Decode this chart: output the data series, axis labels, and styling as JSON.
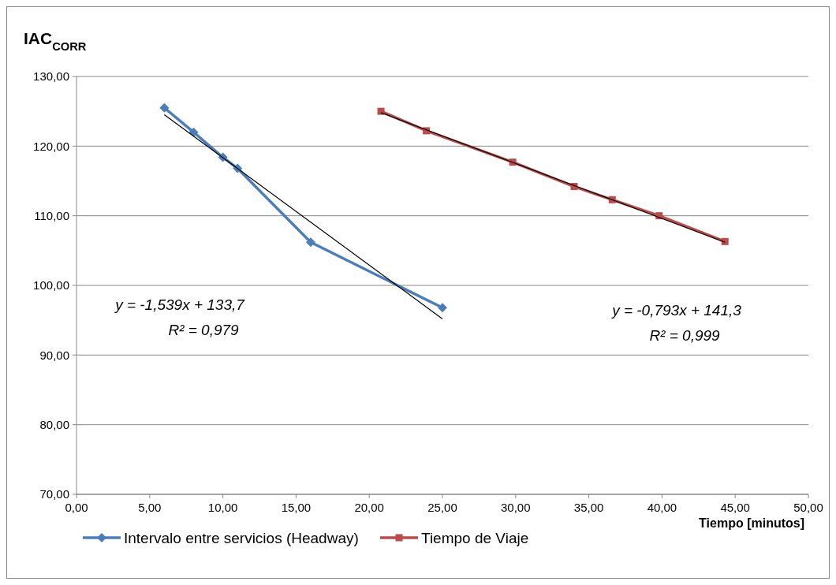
{
  "chart_data": {
    "type": "line",
    "ylabel": "IAC$_{CORR}$",
    "xlabel": "Tiempo [minutos]",
    "xlim": [
      0,
      50
    ],
    "ylim": [
      70,
      130
    ],
    "xticks": [
      {
        "value": 0,
        "label": "0,00"
      },
      {
        "value": 5,
        "label": "5,00"
      },
      {
        "value": 10,
        "label": "10,00"
      },
      {
        "value": 15,
        "label": "15,00"
      },
      {
        "value": 20,
        "label": "20,00"
      },
      {
        "value": 25,
        "label": "25,00"
      },
      {
        "value": 30,
        "label": "30,00"
      },
      {
        "value": 35,
        "label": "35,00"
      },
      {
        "value": 40,
        "label": "40,00"
      },
      {
        "value": 45,
        "label": "45,00"
      },
      {
        "value": 50,
        "label": "50,00"
      }
    ],
    "yticks": [
      {
        "value": 70,
        "label": "70,00"
      },
      {
        "value": 80,
        "label": "80,00"
      },
      {
        "value": 90,
        "label": "90,00"
      },
      {
        "value": 100,
        "label": "100,00"
      },
      {
        "value": 110,
        "label": "110,00"
      },
      {
        "value": 120,
        "label": "120,00"
      },
      {
        "value": 130,
        "label": "130,00"
      }
    ],
    "grid": "y",
    "legend": "bottom",
    "series": [
      {
        "name": "Intervalo entre servicios (Headway)",
        "color": "#4a7ebb",
        "marker": "diamond",
        "x": [
          6,
          8,
          10,
          11,
          16,
          25
        ],
        "values": [
          125.5,
          122,
          118.4,
          116.8,
          106.2,
          96.8
        ]
      },
      {
        "name": "Tiempo de Viaje",
        "color": "#be4b48",
        "marker": "square",
        "x": [
          20.8,
          23.9,
          29.8,
          34,
          36.6,
          39.8,
          44.3
        ],
        "values": [
          125,
          122.2,
          117.7,
          114.2,
          112.3,
          110,
          106.3
        ]
      },
      {
        "color": "#000000",
        "marker": "none",
        "x": [
          6,
          25
        ],
        "values": [
          124.5,
          95.2
        ]
      },
      {
        "color": "#000000",
        "marker": "none",
        "x": [
          20.8,
          44.3
        ],
        "values": [
          124.8,
          106.2
        ]
      }
    ],
    "annotations": [
      "y = -1,539x + 133,7",
      "R² = 0,979",
      "y = -0,793x + 141,3",
      "R² = 0,999"
    ]
  }
}
